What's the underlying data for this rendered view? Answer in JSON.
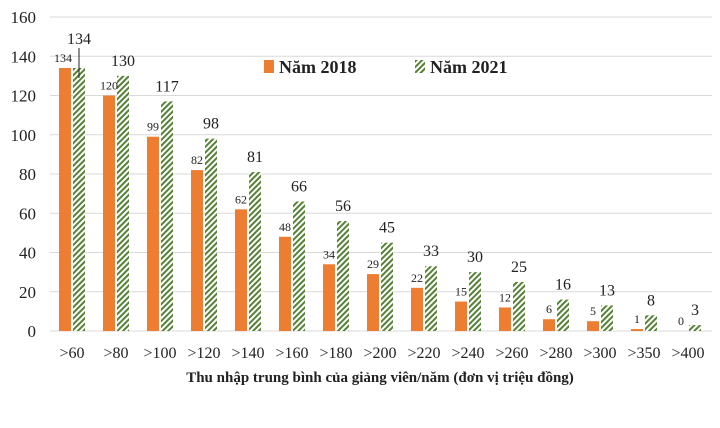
{
  "chart_data": {
    "type": "bar",
    "title": "",
    "xlabel": "Thu nhập trung bình của giảng viên/năm (đơn vị triệu đồng)",
    "ylabel": "",
    "ylim": [
      0,
      160
    ],
    "yticks": [
      0,
      20,
      40,
      60,
      80,
      100,
      120,
      140,
      160
    ],
    "grid": true,
    "legend_position": "top-center",
    "categories": [
      ">60",
      ">80",
      ">100",
      ">120",
      ">140",
      ">160",
      ">180",
      ">200",
      ">220",
      ">240",
      ">260",
      ">280",
      ">300",
      ">350",
      ">400"
    ],
    "series": [
      {
        "name": "Năm 2018",
        "color": "#ED7D31",
        "pattern": "solid",
        "values": [
          134,
          120,
          99,
          82,
          62,
          48,
          34,
          29,
          22,
          15,
          12,
          6,
          5,
          1,
          0
        ]
      },
      {
        "name": "Năm 2021",
        "color": "#548235",
        "pattern": "hatch",
        "values": [
          134,
          130,
          117,
          98,
          81,
          66,
          56,
          45,
          33,
          30,
          25,
          16,
          13,
          8,
          3
        ]
      }
    ]
  }
}
